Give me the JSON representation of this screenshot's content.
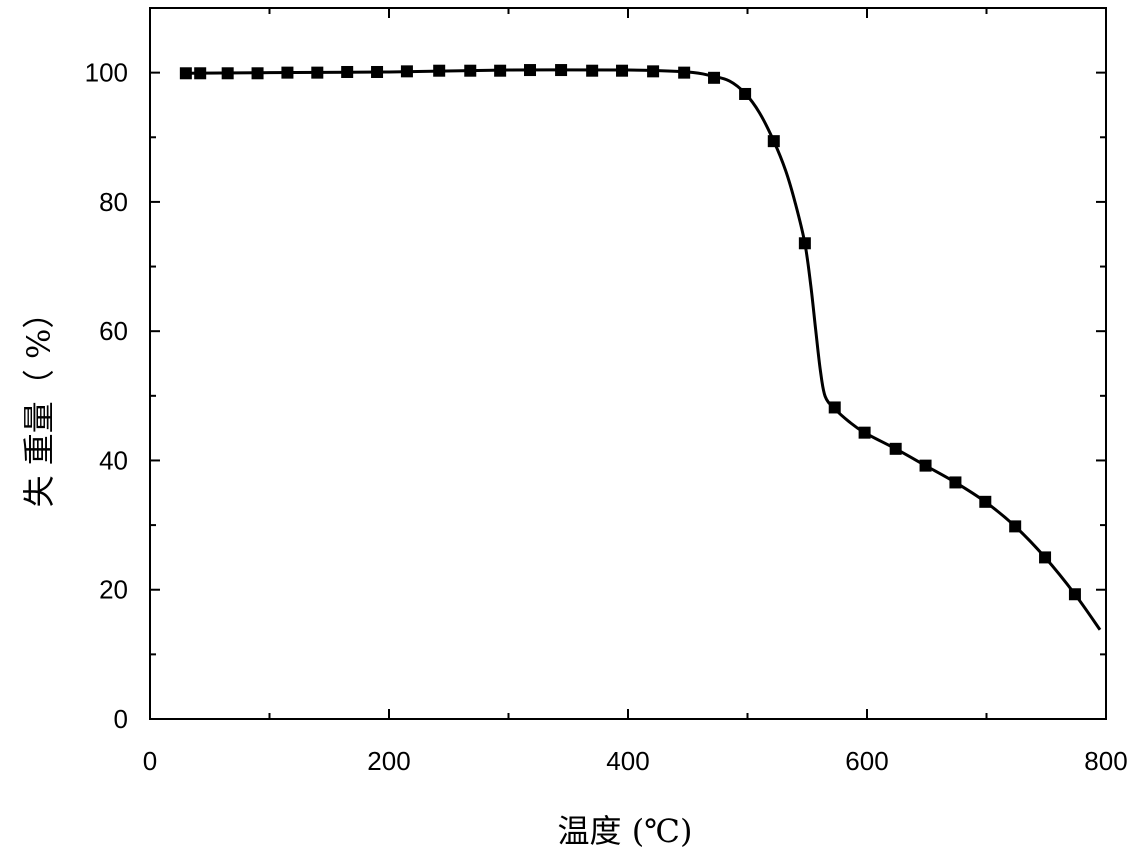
{
  "chart_data": {
    "type": "line",
    "title": "",
    "xlabel": "温度 (℃)",
    "ylabel": "失 重量（ %）",
    "xlim": [
      0,
      800
    ],
    "ylim": [
      0,
      110
    ],
    "x_ticks": [
      0,
      200,
      400,
      600,
      800
    ],
    "y_ticks": [
      0,
      20,
      40,
      60,
      80,
      100
    ],
    "grid": false,
    "legend": "none",
    "line_color": "#000000",
    "marker": "square",
    "series": [
      {
        "points": [
          [
            30,
            99.9
          ],
          [
            42,
            99.9
          ],
          [
            65,
            99.9
          ],
          [
            90,
            99.9
          ],
          [
            115,
            100.0
          ],
          [
            140,
            100.0
          ],
          [
            165,
            100.1
          ],
          [
            190,
            100.1
          ],
          [
            215,
            100.2
          ],
          [
            242,
            100.3
          ],
          [
            268,
            100.3
          ],
          [
            293,
            100.3
          ],
          [
            318,
            100.4
          ],
          [
            344,
            100.4
          ],
          [
            370,
            100.3
          ],
          [
            395,
            100.3
          ],
          [
            421,
            100.2
          ],
          [
            447,
            100.0
          ],
          [
            472,
            99.2
          ],
          [
            498,
            96.7
          ],
          [
            522,
            89.4
          ],
          [
            548,
            73.6
          ],
          [
            573,
            48.2
          ],
          [
            598,
            44.3
          ],
          [
            624,
            41.8
          ],
          [
            649,
            39.2
          ],
          [
            674,
            36.6
          ],
          [
            699,
            33.6
          ],
          [
            724,
            29.8
          ],
          [
            749,
            25.0
          ],
          [
            774,
            19.3
          ]
        ],
        "curve_points": [
          [
            30,
            99.9
          ],
          [
            100,
            100.0
          ],
          [
            200,
            100.1
          ],
          [
            300,
            100.4
          ],
          [
            400,
            100.4
          ],
          [
            450,
            100.1
          ],
          [
            470,
            99.5
          ],
          [
            485,
            98.7
          ],
          [
            498,
            96.8
          ],
          [
            510,
            93.8
          ],
          [
            522,
            89.4
          ],
          [
            532,
            84.8
          ],
          [
            540,
            79.8
          ],
          [
            548,
            73.6
          ],
          [
            553,
            67.0
          ],
          [
            557,
            60.3
          ],
          [
            561,
            53.9
          ],
          [
            565,
            49.9
          ],
          [
            573,
            48.0
          ],
          [
            585,
            46.0
          ],
          [
            598,
            44.3
          ],
          [
            624,
            41.8
          ],
          [
            649,
            39.2
          ],
          [
            674,
            36.6
          ],
          [
            699,
            33.6
          ],
          [
            724,
            29.8
          ],
          [
            749,
            25.0
          ],
          [
            774,
            19.3
          ],
          [
            795,
            13.8
          ]
        ]
      }
    ]
  }
}
